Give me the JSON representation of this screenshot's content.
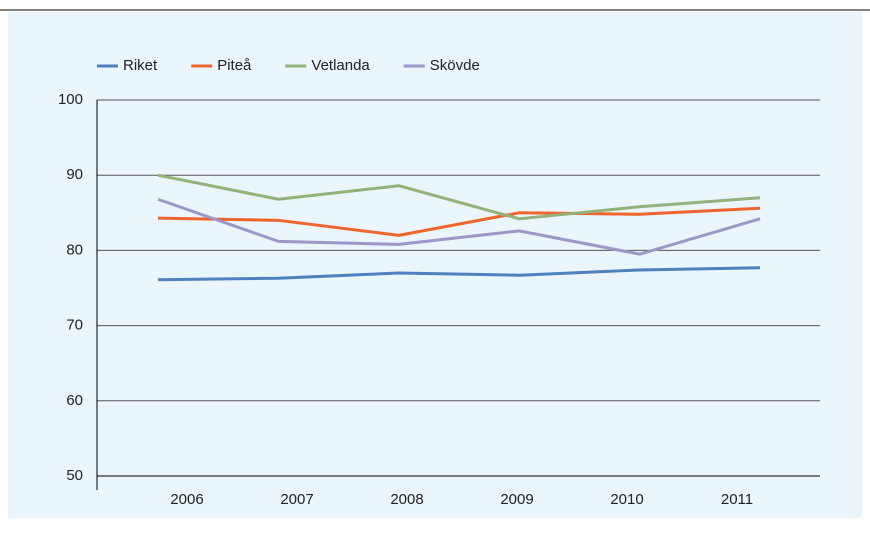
{
  "chart_data": {
    "type": "line",
    "categories": [
      "2006",
      "2007",
      "2008",
      "2009",
      "2010",
      "2011"
    ],
    "series": [
      {
        "name": "Riket",
        "color": "#4f81bd",
        "values": [
          76.1,
          76.3,
          77.0,
          76.7,
          77.4,
          77.7
        ]
      },
      {
        "name": "Piteå",
        "color": "#f0652b",
        "values": [
          84.3,
          84.0,
          82.0,
          85.0,
          84.8,
          85.6
        ]
      },
      {
        "name": "Vetlanda",
        "color": "#92b27a",
        "values": [
          90.0,
          86.8,
          88.6,
          84.2,
          85.8,
          87.0
        ]
      },
      {
        "name": "Skövde",
        "color": "#9c97c9",
        "values": [
          86.8,
          81.2,
          80.8,
          82.6,
          79.5,
          84.2
        ]
      }
    ],
    "ylim": [
      50,
      100
    ],
    "yticks": [
      50,
      60,
      70,
      80,
      90,
      100
    ],
    "grid": true,
    "legend": "top"
  }
}
